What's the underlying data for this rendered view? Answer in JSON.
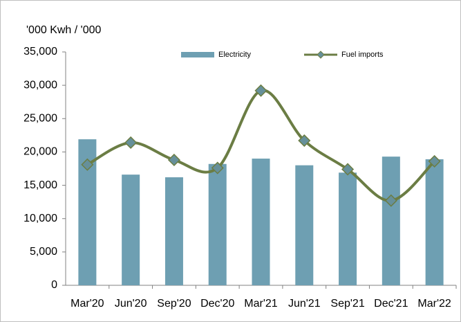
{
  "chart_data": {
    "type": "bar_line",
    "y_axis_label": "'000 Kwh / '000",
    "categories": [
      "Mar'20",
      "Jun'20",
      "Sep'20",
      "Dec'20",
      "Mar'21",
      "Jun'21",
      "Sep'21",
      "Dec'21",
      "Mar'22"
    ],
    "series": [
      {
        "name": "Electricity",
        "type": "bar",
        "color": "#6e9fb2",
        "values": [
          21900,
          16600,
          16200,
          18200,
          19000,
          18000,
          16900,
          19300,
          18900
        ]
      },
      {
        "name": "Fuel imports",
        "type": "line",
        "color": "#6b7d44",
        "marker_color": "#66909a",
        "smooth": true,
        "values": [
          18100,
          21400,
          18800,
          17600,
          29200,
          21700,
          17400,
          12700,
          18600
        ]
      }
    ],
    "ylim": [
      0,
      35000
    ],
    "yticks": [
      0,
      {
        "value": 5000,
        "label": "5,000"
      },
      {
        "value": 10000,
        "label": "10,000"
      },
      {
        "value": 15000,
        "label": "15,000"
      },
      {
        "value": 20000,
        "label": "20,000"
      },
      {
        "value": 25000,
        "label": "25,000"
      },
      {
        "value": 30000,
        "label": "30,000"
      },
      {
        "value": 35000,
        "label": "35,000"
      }
    ],
    "legend": "top"
  }
}
